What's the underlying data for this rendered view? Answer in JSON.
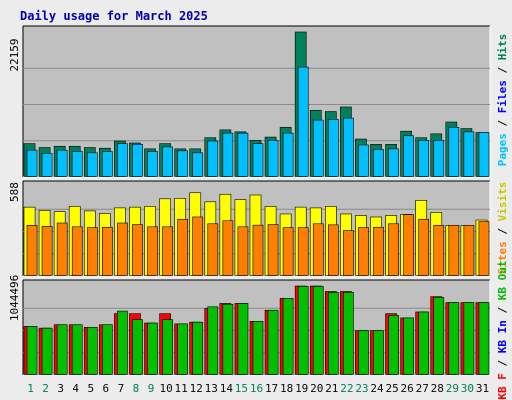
{
  "title": "Daily usage for March 2025",
  "colors": {
    "background": "#ececec",
    "plot_bg": "#c0c0c0",
    "grid": "#8a8a8a",
    "hits": "#00805c",
    "files": "#00c0ff",
    "pages": "#00c0ff",
    "visits": "#ffff00",
    "sites": "#ff8000",
    "kbf": "#ff0000",
    "kbout": "#00c000",
    "kbin": "#0000ff",
    "weekday_label": "#0a0a0a",
    "weekend_label": "#00805c"
  },
  "chart_data": [
    {
      "type": "bar",
      "panel": "pages-files-hits",
      "ylim": [
        0,
        22159
      ],
      "max_label": "22159",
      "right_labels": [
        {
          "text": "Pages",
          "color": "#00c0ff"
        },
        {
          "text": " / ",
          "color": "#0a0a0a"
        },
        {
          "text": "Files",
          "color": "#0000ff"
        },
        {
          "text": " / ",
          "color": "#0a0a0a"
        },
        {
          "text": "Hits",
          "color": "#00805c"
        }
      ],
      "categories": [
        "1",
        "2",
        "3",
        "4",
        "5",
        "6",
        "7",
        "8",
        "9",
        "10",
        "11",
        "12",
        "13",
        "14",
        "15",
        "16",
        "17",
        "18",
        "19",
        "20",
        "21",
        "22",
        "23",
        "24",
        "25",
        "26",
        "27",
        "28",
        "29",
        "30",
        "31"
      ],
      "series": [
        {
          "name": "Hits",
          "values": [
            5100,
            4500,
            4700,
            4700,
            4500,
            4400,
            5500,
            5200,
            4300,
            5100,
            4300,
            4300,
            6000,
            7200,
            6900,
            5600,
            6100,
            7600,
            22159,
            10200,
            10000,
            10700,
            5800,
            5000,
            5000,
            7000,
            6000,
            6600,
            8400,
            7400,
            6800
          ]
        },
        {
          "name": "Files",
          "values": [
            4100,
            3600,
            4100,
            3900,
            3700,
            3900,
            5100,
            5000,
            3900,
            4600,
            4000,
            3700,
            5500,
            6700,
            6700,
            5100,
            5600,
            6700,
            16800,
            8700,
            8800,
            9000,
            4900,
            4200,
            4300,
            6300,
            5600,
            5600,
            7600,
            6900,
            6800
          ]
        }
      ]
    },
    {
      "type": "bar",
      "panel": "visits-sites",
      "ylim": [
        0,
        588
      ],
      "max_label": "588",
      "right_labels": [
        {
          "text": "Sites",
          "color": "#ff8000"
        },
        {
          "text": " / ",
          "color": "#0a0a0a"
        },
        {
          "text": "Visits",
          "color": "#c8c800"
        }
      ],
      "categories": [
        "1",
        "2",
        "3",
        "4",
        "5",
        "6",
        "7",
        "8",
        "9",
        "10",
        "11",
        "12",
        "13",
        "14",
        "15",
        "16",
        "17",
        "18",
        "19",
        "20",
        "21",
        "22",
        "23",
        "24",
        "25",
        "26",
        "27",
        "28",
        "29",
        "30",
        "31"
      ],
      "series": [
        {
          "name": "Visits",
          "values": [
            455,
            433,
            425,
            460,
            430,
            414,
            450,
            455,
            460,
            510,
            513,
            550,
            490,
            540,
            505,
            535,
            460,
            410,
            455,
            450,
            460,
            410,
            400,
            390,
            400,
            407,
            500,
            420,
            335,
            335,
            370
          ]
        },
        {
          "name": "Sites",
          "values": [
            335,
            328,
            350,
            325,
            320,
            322,
            350,
            340,
            325,
            325,
            375,
            390,
            345,
            365,
            325,
            336,
            340,
            320,
            320,
            345,
            338,
            300,
            320,
            322,
            345,
            405,
            375,
            335,
            335,
            335,
            360
          ]
        }
      ]
    },
    {
      "type": "bar",
      "panel": "kbytes",
      "ylim": [
        0,
        1044496
      ],
      "max_label": "1044496",
      "right_labels": [
        {
          "text": "KB F",
          "color": "#ff0000"
        },
        {
          "text": " / ",
          "color": "#0a0a0a"
        },
        {
          "text": "KB In",
          "color": "#0000ff"
        },
        {
          "text": " / ",
          "color": "#0a0a0a"
        },
        {
          "text": "KB Out",
          "color": "#00c000"
        }
      ],
      "categories": [
        "1",
        "2",
        "3",
        "4",
        "5",
        "6",
        "7",
        "8",
        "9",
        "10",
        "11",
        "12",
        "13",
        "14",
        "15",
        "16",
        "17",
        "18",
        "19",
        "20",
        "21",
        "22",
        "23",
        "24",
        "25",
        "26",
        "27",
        "28",
        "29",
        "30",
        "31"
      ],
      "series": [
        {
          "name": "KB F",
          "values": [
            570000,
            550000,
            590000,
            590000,
            560000,
            590000,
            720000,
            720000,
            610000,
            720000,
            600000,
            620000,
            780000,
            840000,
            840000,
            630000,
            760000,
            900000,
            1044496,
            1044496,
            980000,
            980000,
            520000,
            520000,
            720000,
            670000,
            740000,
            920000,
            850000,
            850000,
            850000
          ]
        },
        {
          "name": "KB Out",
          "values": [
            570000,
            550000,
            590000,
            590000,
            560000,
            590000,
            750000,
            650000,
            610000,
            650000,
            600000,
            620000,
            800000,
            830000,
            840000,
            630000,
            760000,
            900000,
            1040000,
            1040000,
            970000,
            970000,
            520000,
            520000,
            700000,
            670000,
            740000,
            910000,
            850000,
            850000,
            850000
          ]
        }
      ]
    }
  ]
}
